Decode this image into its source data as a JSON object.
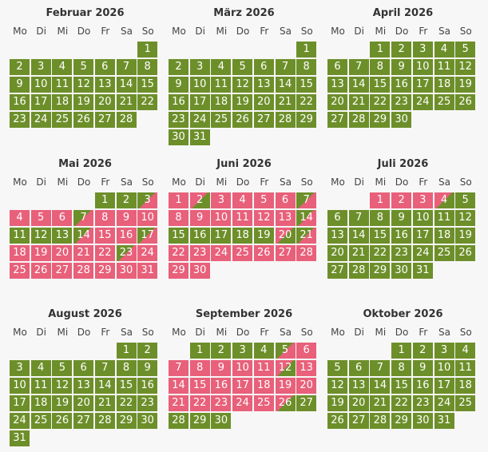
{
  "weekdays": [
    "Mo",
    "Di",
    "Mi",
    "Do",
    "Fr",
    "Sa",
    "So"
  ],
  "colors": {
    "available": "#6d8f2a",
    "booked": "#e8607a",
    "background": "#f7f7f7"
  },
  "months": [
    {
      "name": "Februar 2026",
      "offset": 6,
      "days": 28,
      "booked": [],
      "arrive": [],
      "depart": []
    },
    {
      "name": "März 2026",
      "offset": 6,
      "days": 31,
      "booked": [],
      "arrive": [],
      "depart": []
    },
    {
      "name": "April 2026",
      "offset": 2,
      "days": 30,
      "booked": [],
      "arrive": [],
      "depart": []
    },
    {
      "name": "Mai 2026",
      "offset": 4,
      "days": 31,
      "booked": [
        4,
        5,
        6,
        8,
        9,
        10,
        15,
        16,
        18,
        19,
        20,
        21,
        22,
        24,
        25,
        26,
        27,
        28,
        29,
        30,
        31
      ],
      "arrive": [
        3,
        7,
        14,
        17,
        23
      ],
      "depart": []
    },
    {
      "name": "Juni 2026",
      "offset": 0,
      "days": 30,
      "booked": [
        1,
        3,
        4,
        5,
        6,
        8,
        9,
        10,
        11,
        12,
        13,
        22,
        23,
        24,
        25,
        26,
        27,
        28,
        29,
        30
      ],
      "arrive": [
        7,
        14,
        21
      ],
      "depart": [
        2,
        20
      ]
    },
    {
      "name": "Juli 2026",
      "offset": 2,
      "days": 31,
      "booked": [
        1,
        2,
        3
      ],
      "arrive": [],
      "depart": [
        4
      ]
    },
    {
      "name": "August 2026",
      "offset": 5,
      "days": 31,
      "booked": [],
      "arrive": [],
      "depart": []
    },
    {
      "name": "September 2026",
      "offset": 1,
      "days": 30,
      "booked": [
        6,
        7,
        8,
        9,
        10,
        11,
        13,
        14,
        15,
        16,
        17,
        18,
        19,
        20,
        21,
        22,
        23,
        24,
        25
      ],
      "arrive": [
        5
      ],
      "depart": [
        12,
        26
      ]
    },
    {
      "name": "Oktober 2026",
      "offset": 3,
      "days": 31,
      "booked": [],
      "arrive": [],
      "depart": []
    }
  ]
}
